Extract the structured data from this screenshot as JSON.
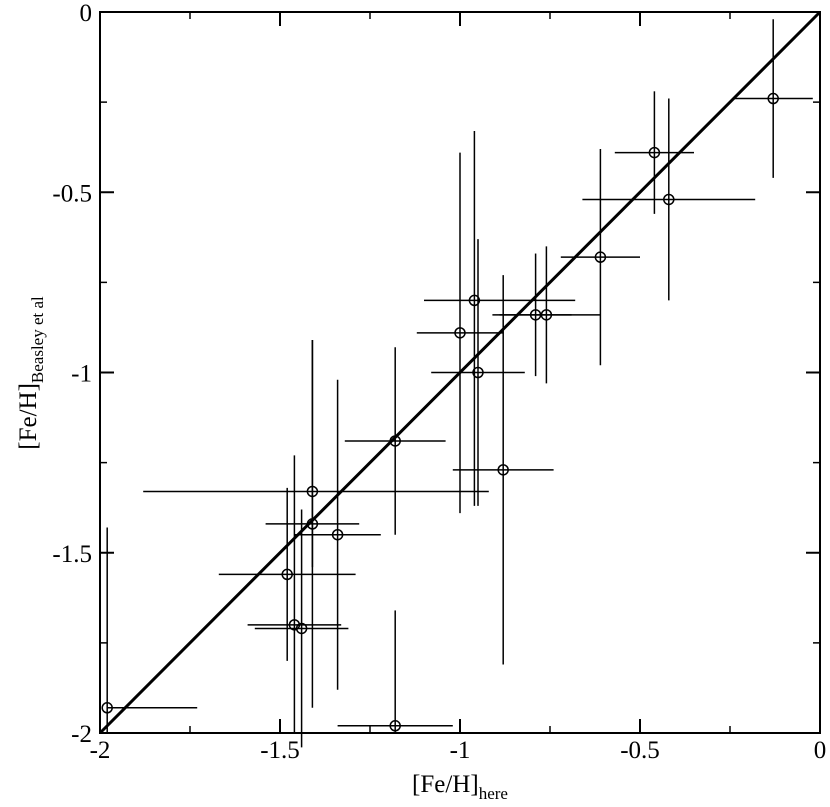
{
  "chart_data": {
    "type": "scatter",
    "title": "",
    "xlabel": {
      "main": "[Fe/H]",
      "sub": "here"
    },
    "ylabel": {
      "main": "[Fe/H]",
      "sub": "Beasley et al"
    },
    "xlim": [
      -2,
      0
    ],
    "ylim": [
      -2,
      0
    ],
    "x_ticks": [
      {
        "value": -2,
        "label": "-2"
      },
      {
        "value": -1.5,
        "label": "-1.5"
      },
      {
        "value": -1,
        "label": "-1"
      },
      {
        "value": -0.5,
        "label": "-0.5"
      },
      {
        "value": 0,
        "label": "0"
      }
    ],
    "y_ticks": [
      {
        "value": -2,
        "label": "-2"
      },
      {
        "value": -1.5,
        "label": "-1.5"
      },
      {
        "value": -1,
        "label": "-1"
      },
      {
        "value": -0.5,
        "label": "-0.5"
      },
      {
        "value": 0,
        "label": "0"
      }
    ],
    "minor_tick_step": 0.25,
    "grid": false,
    "reference_line": {
      "x": [
        -2,
        0
      ],
      "y": [
        -2,
        0
      ]
    },
    "points": [
      {
        "x": -1.98,
        "y": -1.93,
        "xerr": [
          0.0,
          0.25
        ],
        "yerr": [
          0.07,
          0.5
        ]
      },
      {
        "x": -1.48,
        "y": -1.56,
        "xerr": [
          0.19,
          0.19
        ],
        "yerr": [
          0.24,
          0.24
        ]
      },
      {
        "x": -1.46,
        "y": -1.7,
        "xerr": [
          0.13,
          0.13
        ],
        "yerr": [
          0.3,
          0.47
        ]
      },
      {
        "x": -1.44,
        "y": -1.71,
        "xerr": [
          0.13,
          0.13
        ],
        "yerr": [
          0.33,
          0.33
        ]
      },
      {
        "x": -1.41,
        "y": -1.33,
        "xerr": [
          0.47,
          0.49
        ],
        "yerr": [
          0.21,
          0.42
        ]
      },
      {
        "x": -1.41,
        "y": -1.42,
        "xerr": [
          0.13,
          0.13
        ],
        "yerr": [
          0.51,
          0.51
        ]
      },
      {
        "x": -1.34,
        "y": -1.45,
        "xerr": [
          0.12,
          0.12
        ],
        "yerr": [
          0.43,
          0.43
        ]
      },
      {
        "x": -1.18,
        "y": -1.19,
        "xerr": [
          0.14,
          0.14
        ],
        "yerr": [
          0.26,
          0.26
        ]
      },
      {
        "x": -1.18,
        "y": -1.98,
        "xerr": [
          0.16,
          0.16
        ],
        "yerr": [
          0.02,
          0.32
        ]
      },
      {
        "x": -1.0,
        "y": -0.89,
        "xerr": [
          0.12,
          0.12
        ],
        "yerr": [
          0.5,
          0.5
        ]
      },
      {
        "x": -0.96,
        "y": -0.8,
        "xerr": [
          0.14,
          0.28
        ],
        "yerr": [
          0.57,
          0.47
        ]
      },
      {
        "x": -0.95,
        "y": -1.0,
        "xerr": [
          0.13,
          0.13
        ],
        "yerr": [
          0.37,
          0.37
        ]
      },
      {
        "x": -0.88,
        "y": -1.27,
        "xerr": [
          0.14,
          0.14
        ],
        "yerr": [
          0.54,
          0.54
        ]
      },
      {
        "x": -0.79,
        "y": -0.84,
        "xerr": [
          0.1,
          0.1
        ],
        "yerr": [
          0.17,
          0.17
        ]
      },
      {
        "x": -0.76,
        "y": -0.84,
        "xerr": [
          0.15,
          0.15
        ],
        "yerr": [
          0.19,
          0.19
        ]
      },
      {
        "x": -0.61,
        "y": -0.68,
        "xerr": [
          0.11,
          0.11
        ],
        "yerr": [
          0.3,
          0.3
        ]
      },
      {
        "x": -0.46,
        "y": -0.39,
        "xerr": [
          0.11,
          0.11
        ],
        "yerr": [
          0.17,
          0.17
        ]
      },
      {
        "x": -0.42,
        "y": -0.52,
        "xerr": [
          0.24,
          0.24
        ],
        "yerr": [
          0.28,
          0.28
        ]
      },
      {
        "x": -0.13,
        "y": -0.24,
        "xerr": [
          0.11,
          0.11
        ],
        "yerr": [
          0.22,
          0.22
        ]
      }
    ]
  }
}
